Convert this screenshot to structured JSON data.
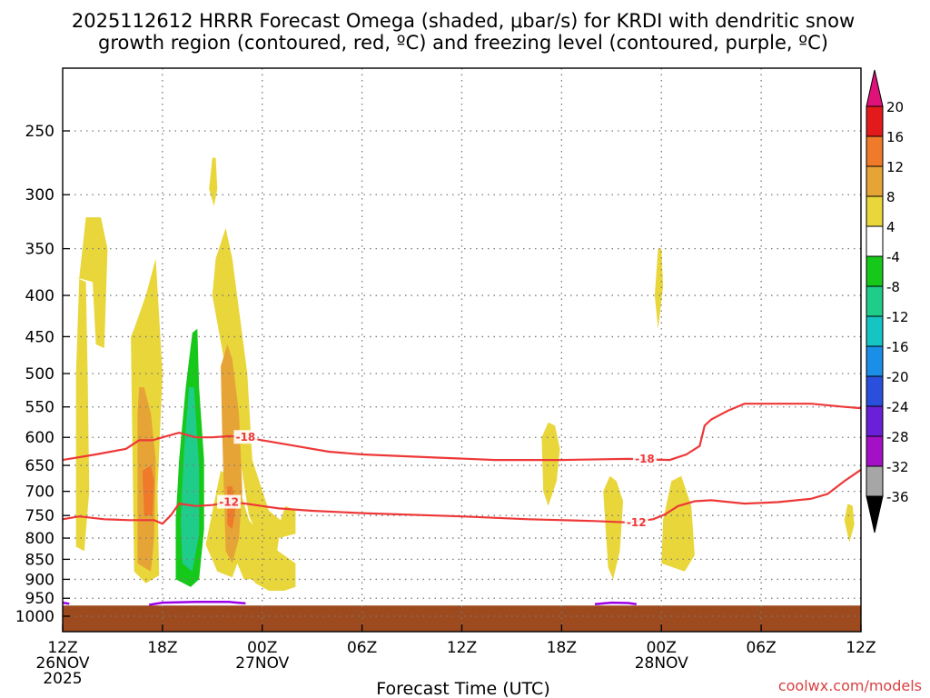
{
  "title_lines": [
    "2025112612 HRRR Forecast Omega (shaded, μbar/s) for KRDI with dendritic snow",
    "growth region (contoured, red, ºC) and freezing level (contoured, purple, ºC)"
  ],
  "xlabel": "Forecast Time (UTC)",
  "credit": "coolwx.com/models",
  "colors": {
    "terrain": "#9c4a1e",
    "contour_red": "#ee3838",
    "contour_purple": "#9b00e6",
    "grid": "#7a7a7a"
  },
  "chart_data": {
    "type": "heatmap",
    "x_hours": [
      0,
      6,
      12,
      18,
      24,
      30,
      36,
      42,
      48
    ],
    "x_ticks": [
      {
        "hour": 0,
        "lines": [
          "12Z",
          "26NOV",
          "2025"
        ]
      },
      {
        "hour": 6,
        "lines": [
          "18Z"
        ]
      },
      {
        "hour": 12,
        "lines": [
          "00Z",
          "27NOV"
        ]
      },
      {
        "hour": 18,
        "lines": [
          "06Z"
        ]
      },
      {
        "hour": 24,
        "lines": [
          "12Z"
        ]
      },
      {
        "hour": 30,
        "lines": [
          "18Z"
        ]
      },
      {
        "hour": 36,
        "lines": [
          "00Z",
          "28NOV"
        ]
      },
      {
        "hour": 42,
        "lines": [
          "06Z"
        ]
      },
      {
        "hour": 48,
        "lines": [
          "12Z"
        ]
      }
    ],
    "y_ticks_hpa": [
      250,
      300,
      350,
      400,
      450,
      500,
      550,
      600,
      650,
      700,
      750,
      800,
      850,
      900,
      950,
      1000
    ],
    "y_range_hpa": [
      200,
      1030
    ],
    "surface_pressure_hpa": 970,
    "colorbar": {
      "levels": [
        20,
        16,
        12,
        8,
        4,
        -4,
        -8,
        -12,
        -16,
        -20,
        -24,
        -28,
        -32,
        -36
      ],
      "colors": [
        "#e31a1c",
        "#ee7a2a",
        "#e6a436",
        "#e9d63a",
        "#ffffff",
        "#16c81a",
        "#1fcc8a",
        "#16c4c4",
        "#1b8ee8",
        "#2a4fdc",
        "#6a1fd8",
        "#a310c6",
        "#a6a6a6"
      ],
      "top_arrow_color": "#e0127a",
      "bottom_arrow_color": "#000000"
    },
    "omega_regions": [
      {
        "level": "4",
        "color": "#e9d63a",
        "points": [
          [
            0.8,
            380
          ],
          [
            1.8,
            385
          ],
          [
            2.0,
            460
          ],
          [
            2.5,
            465
          ],
          [
            2.7,
            350
          ],
          [
            2.3,
            320
          ],
          [
            1.4,
            320
          ],
          [
            1.0,
            380
          ],
          [
            0.8,
            500
          ],
          [
            0.8,
            820
          ],
          [
            1.3,
            830
          ],
          [
            1.6,
            700
          ],
          [
            1.5,
            500
          ],
          [
            1.4,
            385
          ]
        ]
      },
      {
        "level": "4",
        "color": "#e9d63a",
        "points": [
          [
            4.1,
            450
          ],
          [
            4.3,
            880
          ],
          [
            5.0,
            910
          ],
          [
            5.8,
            890
          ],
          [
            5.7,
            700
          ],
          [
            6.0,
            500
          ],
          [
            5.6,
            360
          ],
          [
            5.0,
            400
          ],
          [
            4.3,
            440
          ]
        ]
      },
      {
        "level": "4",
        "color": "#e9d63a",
        "points": [
          [
            9.0,
            400
          ],
          [
            10.0,
            520
          ],
          [
            10.4,
            590
          ],
          [
            11.2,
            750
          ],
          [
            11.8,
            800
          ],
          [
            12.2,
            870
          ],
          [
            12.8,
            860
          ],
          [
            13.0,
            800
          ],
          [
            14.0,
            790
          ],
          [
            14.0,
            740
          ],
          [
            13.4,
            730
          ],
          [
            13.1,
            760
          ],
          [
            12.4,
            740
          ],
          [
            11.4,
            640
          ],
          [
            11.1,
            500
          ],
          [
            10.2,
            360
          ],
          [
            9.8,
            330
          ],
          [
            9.2,
            360
          ]
        ]
      },
      {
        "level": "4",
        "color": "#e9d63a",
        "points": [
          [
            8.6,
            815
          ],
          [
            9.3,
            880
          ],
          [
            10.2,
            895
          ],
          [
            10.5,
            860
          ],
          [
            10.9,
            900
          ],
          [
            11.4,
            900
          ],
          [
            11.6,
            910
          ],
          [
            12.4,
            930
          ],
          [
            13.3,
            930
          ],
          [
            14.0,
            920
          ],
          [
            14.0,
            860
          ],
          [
            13.3,
            840
          ],
          [
            12.6,
            820
          ],
          [
            11.2,
            760
          ],
          [
            10.5,
            680
          ],
          [
            9.5,
            660
          ]
        ]
      },
      {
        "level": "4",
        "color": "#e9d63a",
        "points": [
          [
            9.0,
            270
          ],
          [
            8.8,
            295
          ],
          [
            9.1,
            310
          ],
          [
            9.3,
            295
          ],
          [
            9.2,
            270
          ]
        ]
      },
      {
        "level": "4",
        "color": "#e9d63a",
        "points": [
          [
            28.8,
            600
          ],
          [
            28.9,
            700
          ],
          [
            29.2,
            730
          ],
          [
            29.7,
            680
          ],
          [
            29.9,
            620
          ],
          [
            29.6,
            580
          ],
          [
            29.2,
            575
          ]
        ]
      },
      {
        "level": "4",
        "color": "#e9d63a",
        "points": [
          [
            32.5,
            700
          ],
          [
            32.8,
            870
          ],
          [
            33.1,
            900
          ],
          [
            33.5,
            830
          ],
          [
            33.7,
            720
          ],
          [
            33.3,
            680
          ],
          [
            32.9,
            670
          ]
        ]
      },
      {
        "level": "4",
        "color": "#e9d63a",
        "points": [
          [
            35.8,
            350
          ],
          [
            35.6,
            400
          ],
          [
            35.8,
            440
          ],
          [
            36.1,
            390
          ],
          [
            36.0,
            350
          ]
        ]
      },
      {
        "level": "4",
        "color": "#e9d63a",
        "points": [
          [
            36.0,
            860
          ],
          [
            37.4,
            880
          ],
          [
            38.0,
            840
          ],
          [
            37.8,
            730
          ],
          [
            37.2,
            670
          ],
          [
            36.6,
            680
          ],
          [
            36.1,
            760
          ]
        ]
      },
      {
        "level": "4",
        "color": "#e9d63a",
        "points": [
          [
            47.0,
            760
          ],
          [
            47.3,
            810
          ],
          [
            47.6,
            770
          ],
          [
            47.5,
            730
          ],
          [
            47.2,
            725
          ]
        ]
      },
      {
        "level": "8",
        "color": "#e6a436",
        "points": [
          [
            4.5,
            560
          ],
          [
            4.5,
            860
          ],
          [
            5.3,
            880
          ],
          [
            5.5,
            800
          ],
          [
            5.6,
            640
          ],
          [
            5.3,
            560
          ],
          [
            4.9,
            520
          ],
          [
            4.6,
            520
          ]
        ]
      },
      {
        "level": "8",
        "color": "#e6a436",
        "points": [
          [
            9.5,
            490
          ],
          [
            9.6,
            600
          ],
          [
            9.8,
            830
          ],
          [
            10.2,
            860
          ],
          [
            10.6,
            800
          ],
          [
            10.8,
            700
          ],
          [
            10.6,
            560
          ],
          [
            10.2,
            480
          ],
          [
            9.9,
            460
          ]
        ]
      },
      {
        "level": "12",
        "color": "#ee7a2a",
        "points": [
          [
            4.8,
            660
          ],
          [
            4.9,
            750
          ],
          [
            5.4,
            750
          ],
          [
            5.5,
            680
          ],
          [
            5.3,
            650
          ]
        ]
      },
      {
        "level": "12",
        "color": "#ee7a2a",
        "points": [
          [
            9.9,
            690
          ],
          [
            9.9,
            770
          ],
          [
            10.2,
            780
          ],
          [
            10.4,
            730
          ],
          [
            10.2,
            690
          ]
        ]
      },
      {
        "level": "-4",
        "color": "#16c81a",
        "points": [
          [
            7.8,
            445
          ],
          [
            7.4,
            520
          ],
          [
            7.0,
            640
          ],
          [
            6.8,
            760
          ],
          [
            6.8,
            900
          ],
          [
            7.7,
            920
          ],
          [
            8.2,
            900
          ],
          [
            8.5,
            780
          ],
          [
            8.5,
            640
          ],
          [
            8.2,
            520
          ],
          [
            8.1,
            440
          ]
        ]
      },
      {
        "level": "-8",
        "color": "#1fcc8a",
        "points": [
          [
            7.6,
            520
          ],
          [
            7.3,
            620
          ],
          [
            7.1,
            760
          ],
          [
            7.2,
            860
          ],
          [
            7.8,
            880
          ],
          [
            8.2,
            790
          ],
          [
            8.2,
            650
          ],
          [
            8.0,
            560
          ],
          [
            7.9,
            520
          ]
        ]
      }
    ],
    "contours_red": [
      {
        "label": "-18",
        "points": [
          [
            0,
            640
          ],
          [
            2,
            630
          ],
          [
            3.8,
            620
          ],
          [
            4.6,
            605
          ],
          [
            5.4,
            605
          ],
          [
            6.0,
            600
          ],
          [
            7.0,
            592
          ],
          [
            8.0,
            600
          ],
          [
            9.0,
            600
          ],
          [
            10.0,
            598
          ],
          [
            11.0,
            600
          ],
          [
            12.0,
            605
          ],
          [
            14.0,
            615
          ],
          [
            16.0,
            625
          ],
          [
            18.0,
            630
          ],
          [
            22.0,
            635
          ],
          [
            26.0,
            640
          ],
          [
            30.0,
            640
          ],
          [
            34.0,
            638
          ],
          [
            36.5,
            640
          ],
          [
            37.5,
            630
          ],
          [
            38.3,
            615
          ],
          [
            38.6,
            580
          ],
          [
            39.0,
            570
          ],
          [
            40.0,
            556
          ],
          [
            41.0,
            545
          ],
          [
            43.0,
            545
          ],
          [
            45.0,
            545
          ],
          [
            47.0,
            550
          ],
          [
            48.0,
            552
          ]
        ],
        "label_at": [
          [
            11.0,
            600
          ],
          [
            35.0,
            638
          ]
        ]
      },
      {
        "label": "-12",
        "points": [
          [
            0,
            758
          ],
          [
            1.0,
            752
          ],
          [
            2.5,
            758
          ],
          [
            4.0,
            760
          ],
          [
            5.5,
            760
          ],
          [
            6.0,
            768
          ],
          [
            6.5,
            750
          ],
          [
            7.0,
            725
          ],
          [
            8.0,
            730
          ],
          [
            9.0,
            728
          ],
          [
            10.0,
            722
          ],
          [
            11.0,
            725
          ],
          [
            12.0,
            730
          ],
          [
            13.0,
            735
          ],
          [
            15.0,
            740
          ],
          [
            18.0,
            745
          ],
          [
            24.0,
            752
          ],
          [
            28.0,
            758
          ],
          [
            32.0,
            762
          ],
          [
            34.0,
            765
          ],
          [
            35.5,
            758
          ],
          [
            36.2,
            748
          ],
          [
            37.0,
            730
          ],
          [
            38.0,
            720
          ],
          [
            39.0,
            718
          ],
          [
            41.0,
            725
          ],
          [
            43.0,
            722
          ],
          [
            45.0,
            715
          ],
          [
            46.0,
            705
          ],
          [
            47.0,
            680
          ],
          [
            48.0,
            658
          ]
        ],
        "label_at": [
          [
            10.0,
            722
          ],
          [
            34.5,
            765
          ]
        ]
      }
    ],
    "contours_purple": [
      {
        "label": "0",
        "points": [
          [
            0,
            962
          ],
          [
            0.4,
            965
          ]
        ]
      },
      {
        "label": "0",
        "points": [
          [
            5.2,
            968
          ],
          [
            6.0,
            962
          ],
          [
            8.0,
            960
          ],
          [
            10.0,
            960
          ],
          [
            11.0,
            964
          ]
        ]
      },
      {
        "label": "0",
        "points": [
          [
            32.0,
            966
          ],
          [
            33.0,
            962
          ],
          [
            34.0,
            963
          ],
          [
            34.5,
            966
          ]
        ]
      }
    ]
  }
}
